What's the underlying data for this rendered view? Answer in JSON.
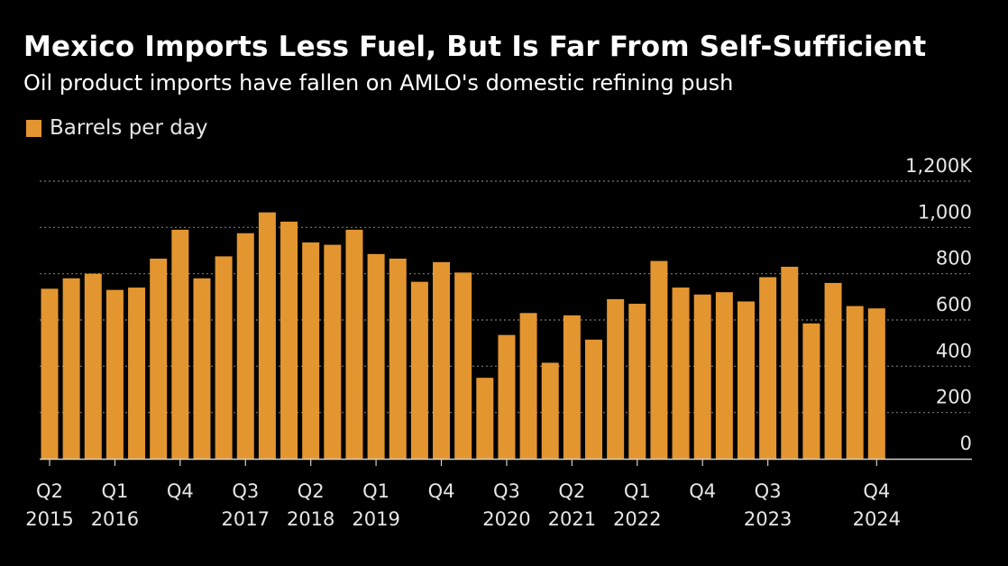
{
  "header": {
    "title": "Mexico Imports Less Fuel, But Is Far From Self-Sufficient",
    "subtitle": "Oil product imports have fallen on AMLO's domestic refining push"
  },
  "legend": {
    "label": "Barrels per day",
    "color": "#e39530"
  },
  "colors": {
    "bar": "#e39530",
    "background": "#000000",
    "grid": "#7a7a7a",
    "text": "#e6e6e6"
  },
  "chart_data": {
    "type": "bar",
    "legend_position": "top-left",
    "y_axis_side": "right",
    "grid": true,
    "ylim": [
      0,
      1200
    ],
    "y_ticks": [
      {
        "value": 0,
        "label": "0"
      },
      {
        "value": 200,
        "label": "200"
      },
      {
        "value": 400,
        "label": "400"
      },
      {
        "value": 600,
        "label": "600"
      },
      {
        "value": 800,
        "label": "800"
      },
      {
        "value": 1000,
        "label": "1,000"
      },
      {
        "value": 1200,
        "label": "1,200K"
      }
    ],
    "categories": [
      "Q2 2015",
      "Q3 2015",
      "Q4 2015",
      "Q1 2016",
      "Q2 2016",
      "Q3 2016",
      "Q4 2016",
      "Q1 2017",
      "Q2 2017",
      "Q3 2017",
      "Q4 2017",
      "Q1 2018",
      "Q2 2018",
      "Q3 2018",
      "Q4 2018",
      "Q1 2019",
      "Q2 2019",
      "Q3 2019",
      "Q4 2019",
      "Q1 2020",
      "Q2 2020",
      "Q3 2020",
      "Q4 2020",
      "Q1 2021",
      "Q2 2021",
      "Q3 2021",
      "Q4 2021",
      "Q1 2022",
      "Q2 2022",
      "Q3 2022",
      "Q4 2022",
      "Q1 2023",
      "Q2 2023",
      "Q3 2023",
      "Q4 2023",
      "Q1 2024",
      "Q2 2024",
      "Q3 2024",
      "Q4 2024"
    ],
    "series": [
      {
        "values": [
          735,
          780,
          800,
          730,
          740,
          865,
          990,
          780,
          875,
          975,
          1065,
          1025,
          935,
          925,
          990,
          885,
          865,
          765,
          850,
          805,
          350,
          535,
          630,
          415,
          620,
          515,
          690,
          670,
          855,
          740,
          710,
          720,
          680,
          785,
          830,
          585,
          760,
          660,
          650
        ]
      }
    ],
    "x_tick_labels": [
      {
        "index": 0,
        "quarter": "Q2",
        "year": "2015"
      },
      {
        "index": 3,
        "quarter": "Q1",
        "year": "2016"
      },
      {
        "index": 6,
        "quarter": "Q4",
        "year": ""
      },
      {
        "index": 9,
        "quarter": "Q3",
        "year": "2017"
      },
      {
        "index": 12,
        "quarter": "Q2",
        "year": "2018"
      },
      {
        "index": 15,
        "quarter": "Q1",
        "year": "2019"
      },
      {
        "index": 18,
        "quarter": "Q4",
        "year": ""
      },
      {
        "index": 21,
        "quarter": "Q3",
        "year": "2020"
      },
      {
        "index": 24,
        "quarter": "Q2",
        "year": "2021"
      },
      {
        "index": 27,
        "quarter": "Q1",
        "year": "2022"
      },
      {
        "index": 30,
        "quarter": "Q4",
        "year": ""
      },
      {
        "index": 33,
        "quarter": "Q3",
        "year": "2023"
      },
      {
        "index": 38,
        "quarter": "Q4",
        "year": "2024"
      }
    ]
  }
}
